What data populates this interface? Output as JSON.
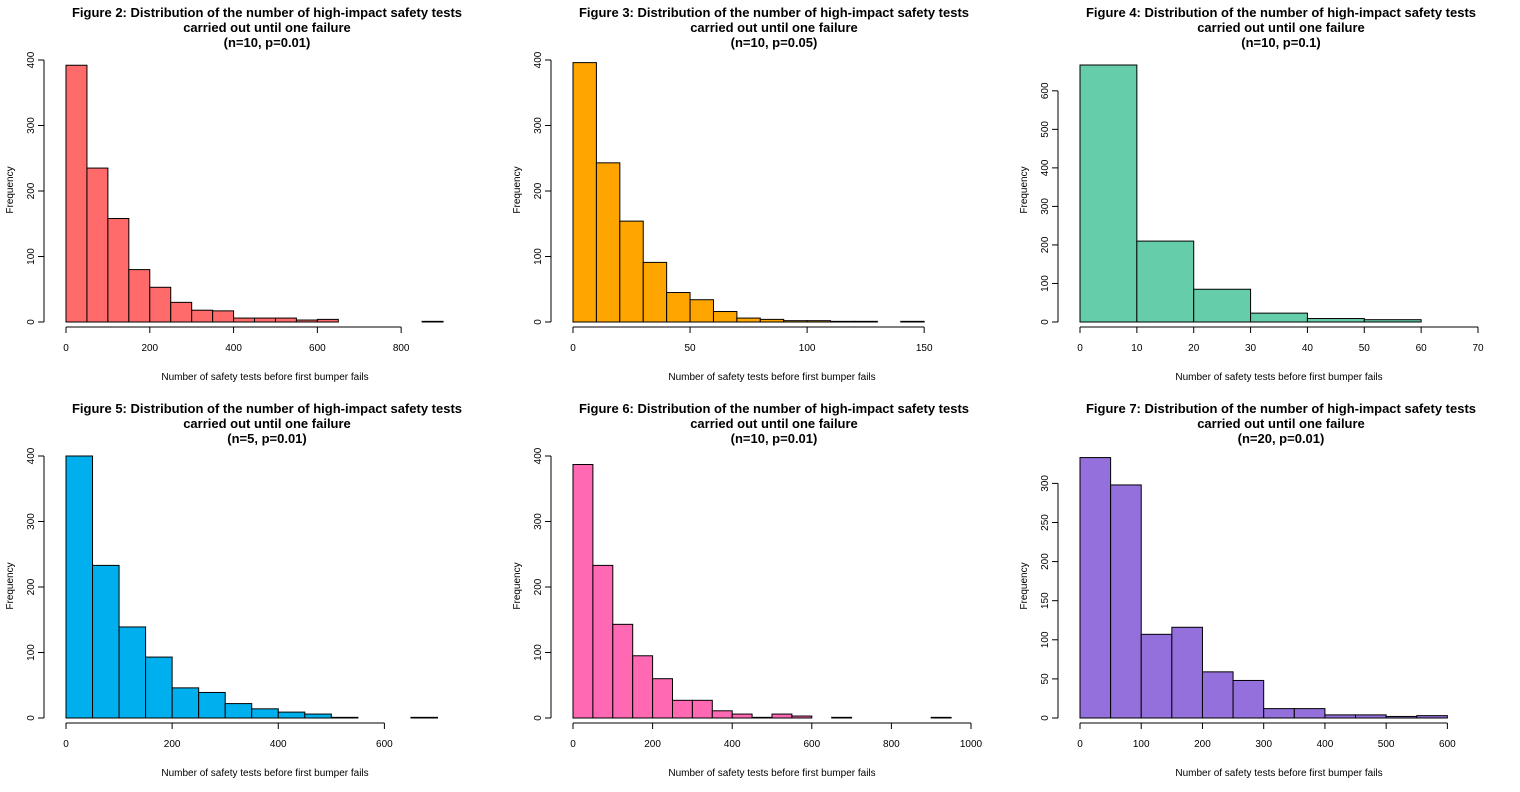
{
  "chart_data": [
    {
      "type": "histogram",
      "title": [
        "Figure 2: Distribution of the number of high-impact safety tests",
        "carried out until one failure",
        "(n=10, p=0.01)"
      ],
      "xlabel": "Number of safety tests before first bumper fails",
      "ylabel": "Frequency",
      "color": "#FF6B6B",
      "bin_width": 50,
      "bin_start": 0,
      "values": [
        392,
        235,
        158,
        80,
        53,
        30,
        18,
        17,
        6,
        6,
        6,
        3,
        4,
        0,
        0,
        0,
        0,
        1
      ],
      "xticks": [
        0,
        200,
        400,
        600,
        800
      ],
      "yticks": [
        0,
        100,
        200,
        300,
        400
      ],
      "xlim": [
        0,
        950
      ],
      "ylim": [
        0,
        400
      ]
    },
    {
      "type": "histogram",
      "title": [
        "Figure 3: Distribution of the number of high-impact safety tests",
        "carried out until one failure",
        "(n=10, p=0.05)"
      ],
      "xlabel": "Number of safety tests before first bumper fails",
      "ylabel": "Frequency",
      "color": "#FFA500",
      "bin_width": 10,
      "bin_start": 0,
      "values": [
        396,
        243,
        154,
        91,
        45,
        34,
        16,
        6,
        4,
        2,
        2,
        1,
        1,
        0,
        1
      ],
      "xticks": [
        0,
        50,
        100,
        150
      ],
      "yticks": [
        0,
        100,
        200,
        300,
        400
      ],
      "xlim": [
        0,
        170
      ],
      "ylim": [
        0,
        400
      ]
    },
    {
      "type": "histogram",
      "title": [
        "Figure 4: Distribution of the number of high-impact safety tests",
        "carried out until one failure",
        "(n=10, p=0.1)"
      ],
      "xlabel": "Number of safety tests before first bumper fails",
      "ylabel": "Frequency",
      "color": "#66CDAA",
      "bin_width": 10,
      "bin_start": 0,
      "values": [
        667,
        210,
        85,
        23,
        9,
        6
      ],
      "xticks": [
        0,
        10,
        20,
        30,
        40,
        50,
        60,
        70
      ],
      "yticks": [
        0,
        100,
        200,
        300,
        400,
        500,
        600
      ],
      "xlim": [
        0,
        70
      ],
      "ylim": [
        0,
        680
      ]
    },
    {
      "type": "histogram",
      "title": [
        "Figure 5: Distribution of the number of high-impact safety tests",
        "carried out until one failure",
        "(n=5, p=0.01)"
      ],
      "xlabel": "Number of safety tests before first bumper fails",
      "ylabel": "Frequency",
      "color": "#00B0EE",
      "bin_width": 50,
      "bin_start": 0,
      "values": [
        400,
        233,
        139,
        93,
        46,
        39,
        22,
        14,
        9,
        6,
        1,
        0,
        0,
        1
      ],
      "xticks": [
        0,
        200,
        400,
        600
      ],
      "yticks": [
        0,
        100,
        200,
        300,
        400
      ],
      "xlim": [
        0,
        750
      ],
      "ylim": [
        0,
        400
      ]
    },
    {
      "type": "histogram",
      "title": [
        "Figure 6: Distribution of the number of high-impact safety tests",
        "carried out until one failure",
        "(n=10, p=0.01)"
      ],
      "xlabel": "Number of safety tests before first bumper fails",
      "ylabel": "Frequency",
      "color": "#FF69B4",
      "bin_width": 50,
      "bin_start": 0,
      "values": [
        387,
        233,
        143,
        95,
        60,
        27,
        27,
        11,
        6,
        1,
        6,
        3,
        0,
        1,
        0,
        0,
        0,
        0,
        1
      ],
      "xticks": [
        0,
        200,
        400,
        600,
        800,
        1000
      ],
      "yticks": [
        0,
        100,
        200,
        300,
        400
      ],
      "xlim": [
        0,
        1000
      ],
      "ylim": [
        0,
        400
      ]
    },
    {
      "type": "histogram",
      "title": [
        "Figure 7: Distribution of the number of high-impact safety tests",
        "carried out until one failure",
        "(n=20, p=0.01)"
      ],
      "xlabel": "Number of safety tests before first bumper fails",
      "ylabel": "Frequency",
      "color": "#9370DB",
      "bin_width": 50,
      "bin_start": 0,
      "values": [
        333,
        298,
        107,
        116,
        59,
        48,
        12,
        12,
        4,
        4,
        2,
        3
      ],
      "xticks": [
        0,
        100,
        200,
        300,
        400,
        500,
        600
      ],
      "yticks": [
        0,
        50,
        100,
        150,
        200,
        250,
        300
      ],
      "xlim": [
        0,
        650
      ],
      "ylim": [
        0,
        335
      ]
    }
  ]
}
